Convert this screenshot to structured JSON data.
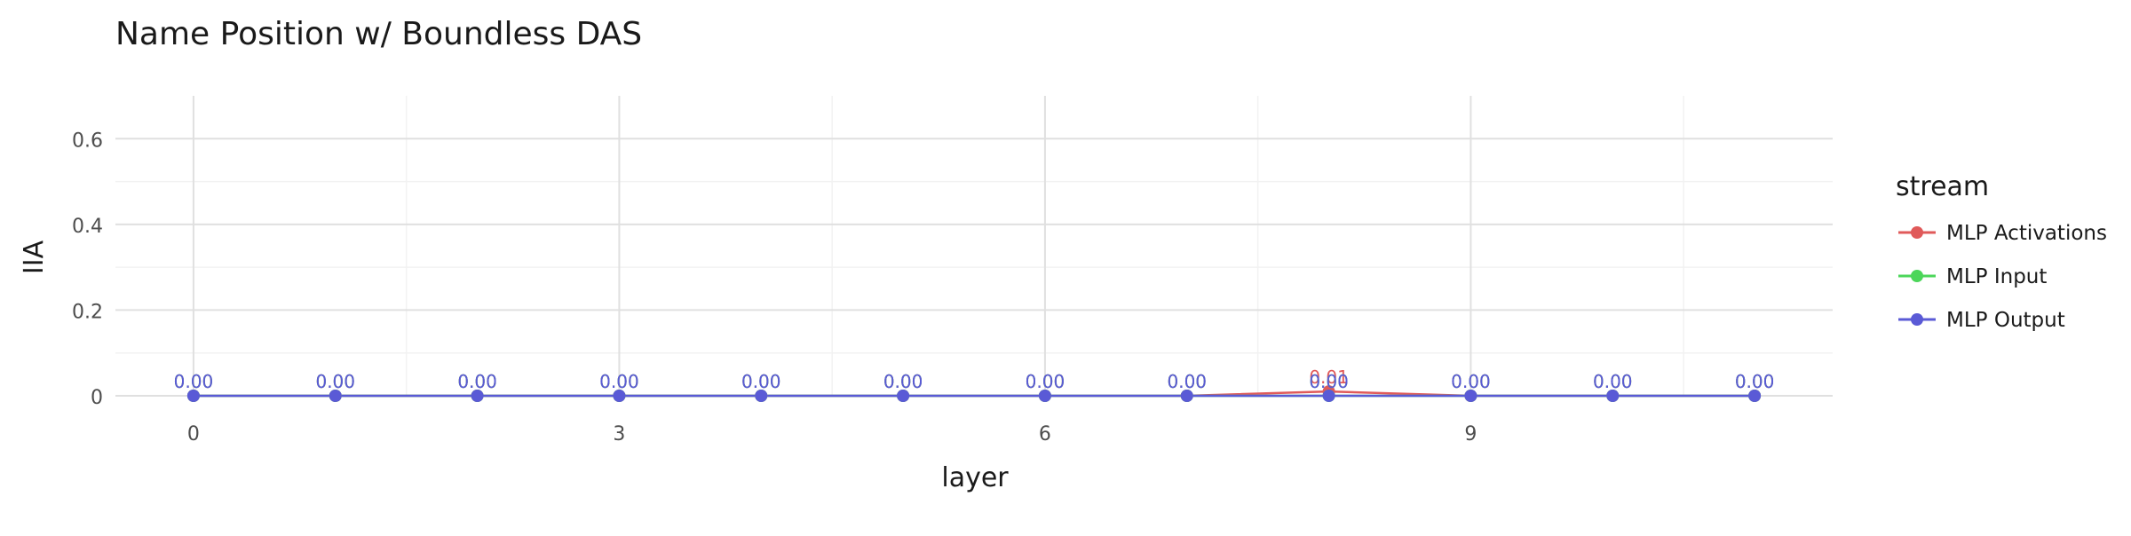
{
  "chart_data": {
    "type": "line",
    "title": "Name Position w/ Boundless DAS",
    "xlabel": "layer",
    "ylabel": "IIA",
    "x": [
      0,
      1,
      2,
      3,
      4,
      5,
      6,
      7,
      8,
      9,
      10,
      11
    ],
    "xticks": [
      0,
      3,
      6,
      9
    ],
    "xlim": [
      -0.55,
      11.55
    ],
    "yticks": [
      0,
      0.2,
      0.4,
      0.6
    ],
    "ytick_labels": [
      "0",
      "0.2",
      "0.4",
      "0.6"
    ],
    "ylim": [
      0,
      0.7
    ],
    "grid": true,
    "legend": {
      "title": "stream",
      "position": "right"
    },
    "series": [
      {
        "name": "MLP Activations",
        "color": "#e05a5a",
        "values": [
          0,
          0,
          0,
          0,
          0,
          0,
          0,
          0,
          0.01,
          0,
          0,
          0
        ],
        "labels": [
          "0.00",
          "0.00",
          "0.00",
          "0.00",
          "0.00",
          "0.00",
          "0.00",
          "0.00",
          "0.01",
          "0.00",
          "0.00",
          "0.00"
        ]
      },
      {
        "name": "MLP Input",
        "color": "#4cd65a",
        "values": [
          0,
          0,
          0,
          0,
          0,
          0,
          0,
          0,
          0,
          0,
          0,
          0
        ],
        "labels": [
          "0.00",
          "0.00",
          "0.00",
          "0.00",
          "0.00",
          "0.00",
          "0.00",
          "0.00",
          "0.00",
          "0.00",
          "0.00",
          "0.00"
        ]
      },
      {
        "name": "MLP Output",
        "color": "#5a5ad6",
        "values": [
          0,
          0,
          0,
          0,
          0,
          0,
          0,
          0,
          0,
          0,
          0,
          0
        ],
        "labels": [
          "0.00",
          "0.00",
          "0.00",
          "0.00",
          "0.00",
          "0.00",
          "0.00",
          "0.00",
          "0.00",
          "0.00",
          "0.00",
          "0.00"
        ]
      }
    ]
  }
}
